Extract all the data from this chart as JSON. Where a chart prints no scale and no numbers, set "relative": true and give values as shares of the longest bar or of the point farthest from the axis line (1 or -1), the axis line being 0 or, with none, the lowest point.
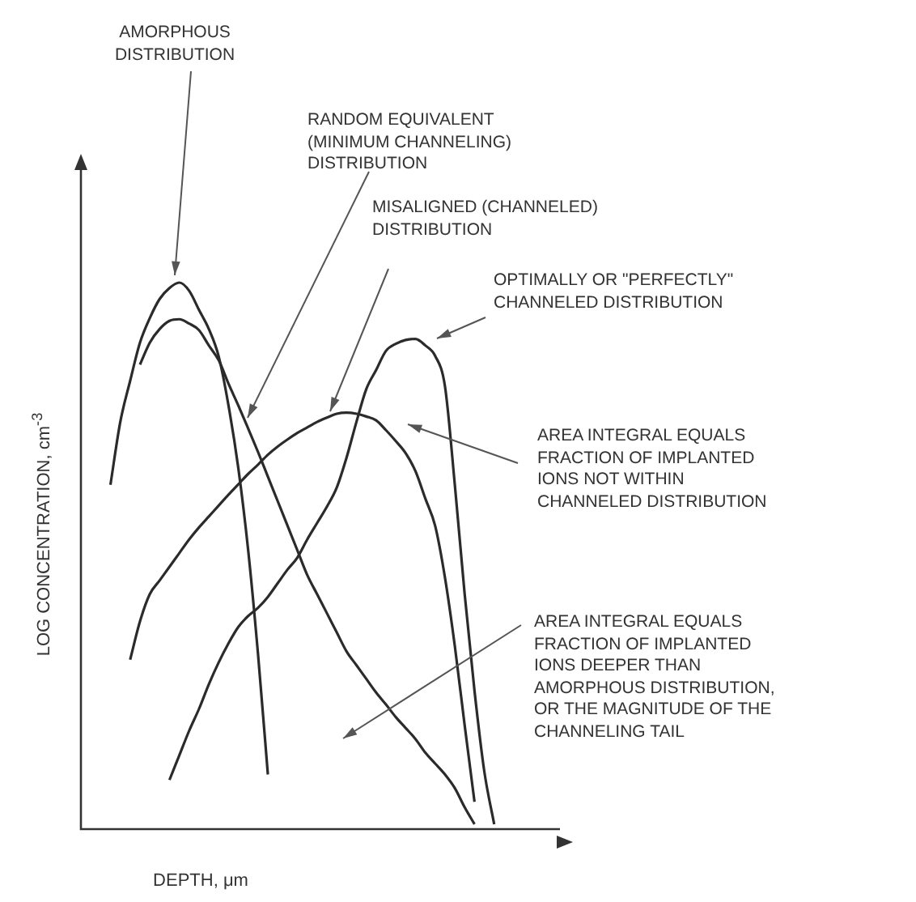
{
  "chart_data": {
    "type": "line",
    "relative": true,
    "xlabel": "DEPTH, μm",
    "ylabel": "LOG CONCENTRATION, cm$^{-3}$",
    "categories": [
      null,
      null,
      null,
      null,
      null,
      null,
      null,
      null,
      null,
      null,
      null,
      null,
      null,
      null,
      null,
      null,
      null,
      null,
      null,
      null,
      null,
      null,
      null,
      null,
      null,
      null,
      null,
      null,
      null,
      null,
      null,
      null,
      null,
      null,
      null,
      null,
      null,
      null,
      null,
      null,
      null,
      null,
      null,
      null,
      null,
      null,
      null,
      null,
      null,
      null,
      null
    ],
    "series": [
      {
        "color": "#2b2b2b",
        "values": [
          null,
          null,
          null,
          0.63,
          0.745,
          0.82,
          0.89,
          0.935,
          0.97,
          0.99,
          1.0,
          0.985,
          0.95,
          0.915,
          0.865,
          0.775,
          0.66,
          0.51,
          0.32,
          0.1,
          null,
          null,
          null,
          null,
          null,
          null,
          null,
          null,
          null,
          null,
          null,
          null,
          null,
          null,
          null,
          null,
          null,
          null,
          null,
          null,
          null,
          null,
          null,
          null,
          null,
          null,
          null,
          null,
          null,
          null,
          null
        ]
      },
      {
        "color": "#2b2b2b",
        "values": [
          null,
          null,
          null,
          null,
          null,
          null,
          0.85,
          0.89,
          0.915,
          0.93,
          0.933,
          0.925,
          0.913,
          0.885,
          0.858,
          0.815,
          0.775,
          0.733,
          0.69,
          0.645,
          0.6,
          0.555,
          0.51,
          0.465,
          0.43,
          0.395,
          0.36,
          0.325,
          0.3,
          0.275,
          0.25,
          0.228,
          0.205,
          0.185,
          0.165,
          0.14,
          0.12,
          0.1,
          0.075,
          0.04,
          0.009,
          null,
          null,
          null,
          null,
          null,
          null,
          null,
          null,
          null,
          null
        ]
      },
      {
        "color": "#2b2b2b",
        "values": [
          null,
          null,
          null,
          null,
          null,
          0.31,
          0.38,
          0.43,
          0.455,
          0.48,
          0.505,
          0.53,
          0.552,
          0.572,
          0.592,
          0.612,
          0.631,
          0.65,
          0.667,
          0.685,
          0.7,
          0.713,
          0.725,
          0.735,
          0.745,
          0.753,
          0.76,
          0.762,
          0.76,
          0.755,
          0.748,
          0.73,
          0.71,
          0.688,
          0.655,
          0.605,
          0.555,
          0.46,
          0.335,
          0.19,
          0.05,
          null,
          null,
          null,
          null,
          null,
          null,
          null,
          null,
          null,
          null
        ]
      },
      {
        "color": "#2b2b2b",
        "values": [
          null,
          null,
          null,
          null,
          null,
          null,
          null,
          null,
          null,
          0.09,
          0.135,
          0.18,
          0.22,
          0.265,
          0.305,
          0.34,
          0.37,
          0.39,
          0.405,
          0.425,
          0.45,
          0.475,
          0.497,
          0.53,
          0.56,
          0.59,
          0.625,
          0.68,
          0.745,
          0.805,
          0.84,
          0.875,
          0.888,
          0.895,
          0.897,
          0.885,
          0.866,
          0.81,
          0.63,
          0.43,
          0.253,
          0.105,
          0.009,
          null,
          null,
          null,
          null,
          null,
          null,
          null,
          null
        ]
      }
    ],
    "annotations": [
      "AMORPHOUS\nDISTRIBUTION",
      "RANDOM EQUIVALENT\n(MINIMUM CHANNELING)\nDISTRIBUTION",
      "MISALIGNED (CHANNELED)\nDISTRIBUTION",
      "OPTIMALLY OR \"PERFECTLY\"\nCHANNELED DISTRIBUTION",
      "AREA INTEGRAL EQUALS\nFRACTION OF IMPLANTED\nIONS NOT WITHIN\nCHANNELED DISTRIBUTION",
      "AREA INTEGRAL EQUALS\nFRACTION OF IMPLANTED\nIONS DEEPER THAN\nAMORPHOUS DISTRIBUTION,\nOR THE MAGNITUDE OF THE\nCHANNELING TAIL"
    ]
  }
}
